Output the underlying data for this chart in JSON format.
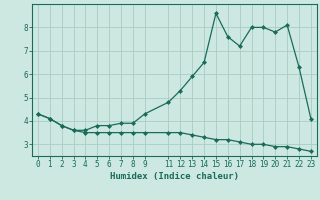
{
  "xlabel": "Humidex (Indice chaleur)",
  "background_color": "#cce8e0",
  "grid_color": "#aaccC4",
  "line_color": "#1a6b5a",
  "line1_x": [
    0,
    1,
    2,
    3,
    4,
    5,
    6,
    7,
    8,
    9,
    11,
    12,
    13,
    14,
    15,
    16,
    17,
    18,
    19,
    20,
    21,
    22,
    23
  ],
  "line1_y": [
    4.3,
    4.1,
    3.8,
    3.6,
    3.6,
    3.8,
    3.8,
    3.9,
    3.9,
    4.3,
    4.8,
    5.3,
    5.9,
    6.5,
    8.6,
    7.6,
    7.2,
    8.0,
    8.0,
    7.8,
    8.1,
    6.3,
    4.1
  ],
  "line2_x": [
    0,
    1,
    2,
    3,
    4,
    5,
    6,
    7,
    8,
    9,
    11,
    12,
    13,
    14,
    15,
    16,
    17,
    18,
    19,
    20,
    21,
    22,
    23
  ],
  "line2_y": [
    4.3,
    4.1,
    3.8,
    3.6,
    3.5,
    3.5,
    3.5,
    3.5,
    3.5,
    3.5,
    3.5,
    3.5,
    3.4,
    3.3,
    3.2,
    3.2,
    3.1,
    3.0,
    3.0,
    2.9,
    2.9,
    2.8,
    2.7
  ],
  "xlim": [
    -0.5,
    23.5
  ],
  "ylim": [
    2.5,
    9.0
  ],
  "yticks": [
    3,
    4,
    5,
    6,
    7,
    8
  ],
  "xticks": [
    0,
    1,
    2,
    3,
    4,
    5,
    6,
    7,
    8,
    9,
    11,
    12,
    13,
    14,
    15,
    16,
    17,
    18,
    19,
    20,
    21,
    22,
    23
  ],
  "tick_fontsize": 5.5,
  "label_fontsize": 6.5
}
